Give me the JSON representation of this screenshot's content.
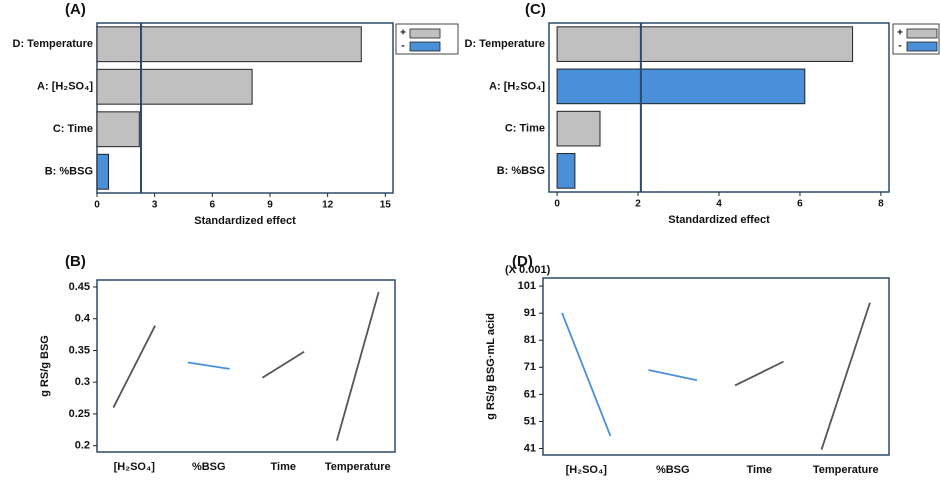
{
  "chart_data": [
    {
      "type": "pareto",
      "panel_label": "(A)",
      "xlabel": "Standardized effect",
      "categories": [
        "D: Temperature",
        "A: [H₂SO₄]",
        "C: Time",
        "B: %BSG"
      ],
      "series": [
        {
          "name": "+",
          "color": "#c0c0c0",
          "values": [
            13.75,
            8.07,
            2.2,
            null
          ]
        },
        {
          "name": "-",
          "color": "#4a90d9",
          "values": [
            null,
            null,
            null,
            0.6
          ]
        }
      ],
      "ref_line": 2.29,
      "xlim": [
        0,
        15.4
      ],
      "xticks": [
        0,
        3,
        6,
        9,
        12,
        15
      ]
    },
    {
      "type": "pareto",
      "panel_label": "(C)",
      "xlabel": "Standardized effect",
      "categories": [
        "D: Temperature",
        "A: [H₂SO₄]",
        "C: Time",
        "B: %BSG"
      ],
      "series": [
        {
          "name": "+",
          "color": "#c0c0c0",
          "values": [
            7.3,
            null,
            1.06,
            null
          ]
        },
        {
          "name": "-",
          "color": "#4a90d9",
          "values": [
            null,
            6.12,
            null,
            0.44
          ]
        }
      ],
      "ref_line": 2.07,
      "xlim": [
        -0.2,
        8.2
      ],
      "xticks": [
        0,
        2,
        4,
        6,
        8
      ]
    },
    {
      "type": "main_effects",
      "panel_label": "(B)",
      "ylabel": "g RS/g BSG",
      "categories": [
        "[H₂SO₄]",
        "%BSG",
        "Time",
        "Temperature"
      ],
      "lows": [
        0.26,
        0.331,
        0.307,
        0.208
      ],
      "highs": [
        0.389,
        0.321,
        0.348,
        0.442
      ],
      "colors": [
        "#555555",
        "#4a90d9",
        "#555555",
        "#555555"
      ],
      "ylim": [
        0.19,
        0.461
      ],
      "yticks": [
        0.2,
        0.25,
        0.3,
        0.35,
        0.4,
        0.45
      ]
    },
    {
      "type": "main_effects",
      "panel_label": "(D)",
      "ylabel": "g RS/g BSG·mL acid",
      "scale_label": "(X 0.001)",
      "categories": [
        "[H₂SO₄]",
        "%BSG",
        "Time",
        "Temperature"
      ],
      "lows": [
        91.1,
        70,
        64.3,
        40.6
      ],
      "highs": [
        45.6,
        66.2,
        73.1,
        94.9
      ],
      "colors": [
        "#4a90d9",
        "#4a90d9",
        "#555555",
        "#555555"
      ],
      "ylim": [
        38.6,
        104
      ],
      "yticks": [
        41,
        51,
        61,
        71,
        81,
        91,
        101
      ]
    }
  ]
}
